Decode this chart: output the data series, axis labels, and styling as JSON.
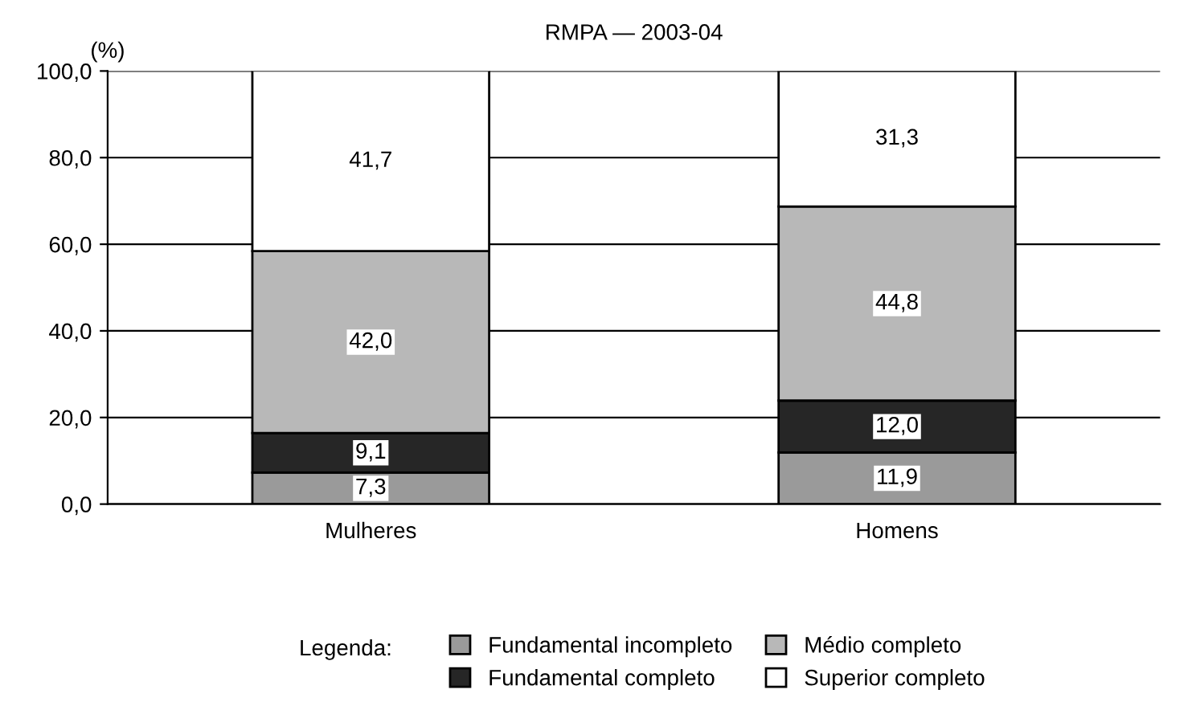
{
  "chart_data": {
    "type": "bar",
    "title": "RMPA — 2003-04",
    "ylabel": "(%)",
    "legend_title": "Legenda:",
    "categories": [
      "Mulheres",
      "Homens"
    ],
    "stacked": true,
    "series": [
      {
        "name": "Fundamental incompleto",
        "color": "#9a9a9a",
        "values": [
          7.3,
          11.9
        ],
        "value_labels": [
          "7,3",
          "11,9"
        ]
      },
      {
        "name": "Fundamental completo",
        "color": "#262626",
        "values": [
          9.1,
          12.0
        ],
        "value_labels": [
          "9,1",
          "12,0"
        ]
      },
      {
        "name": "Médio completo",
        "color": "#b8b8b8",
        "values": [
          42.0,
          44.8
        ],
        "value_labels": [
          "42,0",
          "44,8"
        ]
      },
      {
        "name": "Superior completo",
        "color": "#ffffff",
        "values": [
          41.7,
          31.3
        ],
        "value_labels": [
          "41,7",
          "31,3"
        ]
      }
    ],
    "ylim": [
      0,
      100
    ],
    "yticks": [
      {
        "value": 0,
        "label": "0,0"
      },
      {
        "value": 20,
        "label": "20,0"
      },
      {
        "value": 40,
        "label": "40,0"
      },
      {
        "value": 60,
        "label": "60,0"
      },
      {
        "value": 80,
        "label": "80,0"
      },
      {
        "value": 100,
        "label": "100,0"
      }
    ],
    "grid": "y",
    "legend": "bottom"
  }
}
